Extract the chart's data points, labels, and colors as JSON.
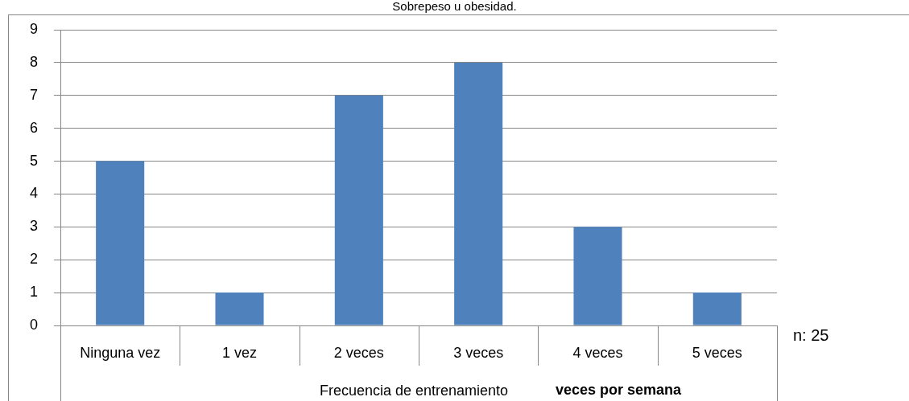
{
  "chart_data": {
    "type": "bar",
    "title": "Sobrepeso u obesidad.",
    "categories": [
      "Ninguna vez",
      "1 vez",
      "2 veces",
      "3 veces",
      "4 veces",
      "5 veces"
    ],
    "values": [
      5,
      1,
      7,
      8,
      3,
      1
    ],
    "color": "#4f81bd",
    "ylim": [
      0,
      9
    ],
    "yticks": [
      0,
      1,
      2,
      3,
      4,
      5,
      6,
      7,
      8,
      9
    ],
    "grid": "y",
    "xlabel": "Frecuencia de entrenamiento",
    "annotations": [
      "n: 25",
      "veces por semana"
    ]
  }
}
